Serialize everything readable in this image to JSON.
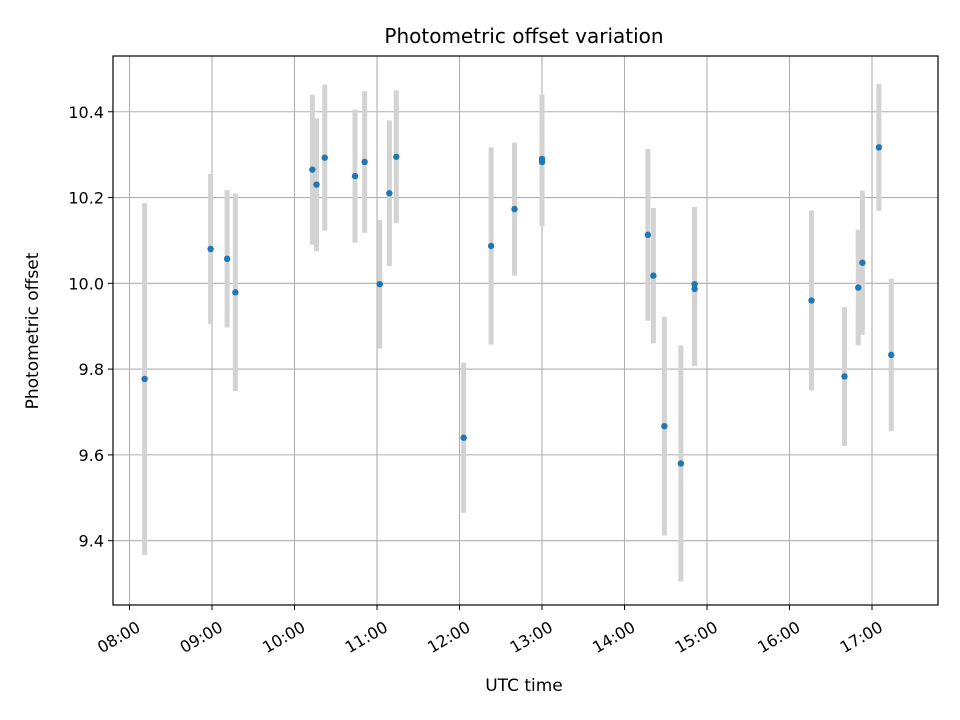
{
  "chart_data": {
    "type": "scatter",
    "title": "Photometric offset variation",
    "xlabel": "UTC time",
    "ylabel": "Photometric offset",
    "x_ticks": [
      "08:00",
      "09:00",
      "10:00",
      "11:00",
      "12:00",
      "13:00",
      "14:00",
      "15:00",
      "16:00",
      "17:00"
    ],
    "y_ticks": [
      "9.4",
      "9.6",
      "9.8",
      "10.0",
      "10.2",
      "10.4"
    ],
    "xlim": [
      "07:48",
      "17:48"
    ],
    "ylim": [
      9.25,
      10.53
    ],
    "grid": true,
    "colors": {
      "point": "#1f77b4",
      "error_bar": "#d3d3d3",
      "grid": "#b0b0b0"
    },
    "points": [
      {
        "time": "08:11",
        "y": 9.777,
        "err": 0.41
      },
      {
        "time": "08:59",
        "y": 10.08,
        "err": 0.175
      },
      {
        "time": "09:11",
        "y": 10.057,
        "err": 0.16
      },
      {
        "time": "09:17",
        "y": 9.979,
        "err": 0.23
      },
      {
        "time": "10:13",
        "y": 10.265,
        "err": 0.175
      },
      {
        "time": "10:16",
        "y": 10.23,
        "err": 0.155
      },
      {
        "time": "10:22",
        "y": 10.293,
        "err": 0.17
      },
      {
        "time": "10:44",
        "y": 10.25,
        "err": 0.155
      },
      {
        "time": "10:51",
        "y": 10.283,
        "err": 0.165
      },
      {
        "time": "11:02",
        "y": 9.998,
        "err": 0.15
      },
      {
        "time": "11:09",
        "y": 10.21,
        "err": 0.17
      },
      {
        "time": "11:14",
        "y": 10.295,
        "err": 0.155
      },
      {
        "time": "12:03",
        "y": 9.64,
        "err": 0.175
      },
      {
        "time": "12:23",
        "y": 10.087,
        "err": 0.23
      },
      {
        "time": "12:40",
        "y": 10.173,
        "err": 0.155
      },
      {
        "time": "13:00",
        "y": 10.29,
        "err": 0.15
      },
      {
        "time": "13:00",
        "y": 10.283,
        "err": 0.15
      },
      {
        "time": "14:17",
        "y": 10.113,
        "err": 0.2
      },
      {
        "time": "14:21",
        "y": 10.018,
        "err": 0.158
      },
      {
        "time": "14:29",
        "y": 9.667,
        "err": 0.255
      },
      {
        "time": "14:41",
        "y": 9.58,
        "err": 0.275
      },
      {
        "time": "14:51",
        "y": 9.998,
        "err": 0.18
      },
      {
        "time": "14:51",
        "y": 9.987,
        "err": 0.18
      },
      {
        "time": "16:16",
        "y": 9.96,
        "err": 0.21
      },
      {
        "time": "16:40",
        "y": 9.783,
        "err": 0.162
      },
      {
        "time": "16:50",
        "y": 9.99,
        "err": 0.135
      },
      {
        "time": "16:53",
        "y": 10.048,
        "err": 0.168
      },
      {
        "time": "17:05",
        "y": 10.317,
        "err": 0.148
      },
      {
        "time": "17:14",
        "y": 9.833,
        "err": 0.178
      }
    ]
  }
}
